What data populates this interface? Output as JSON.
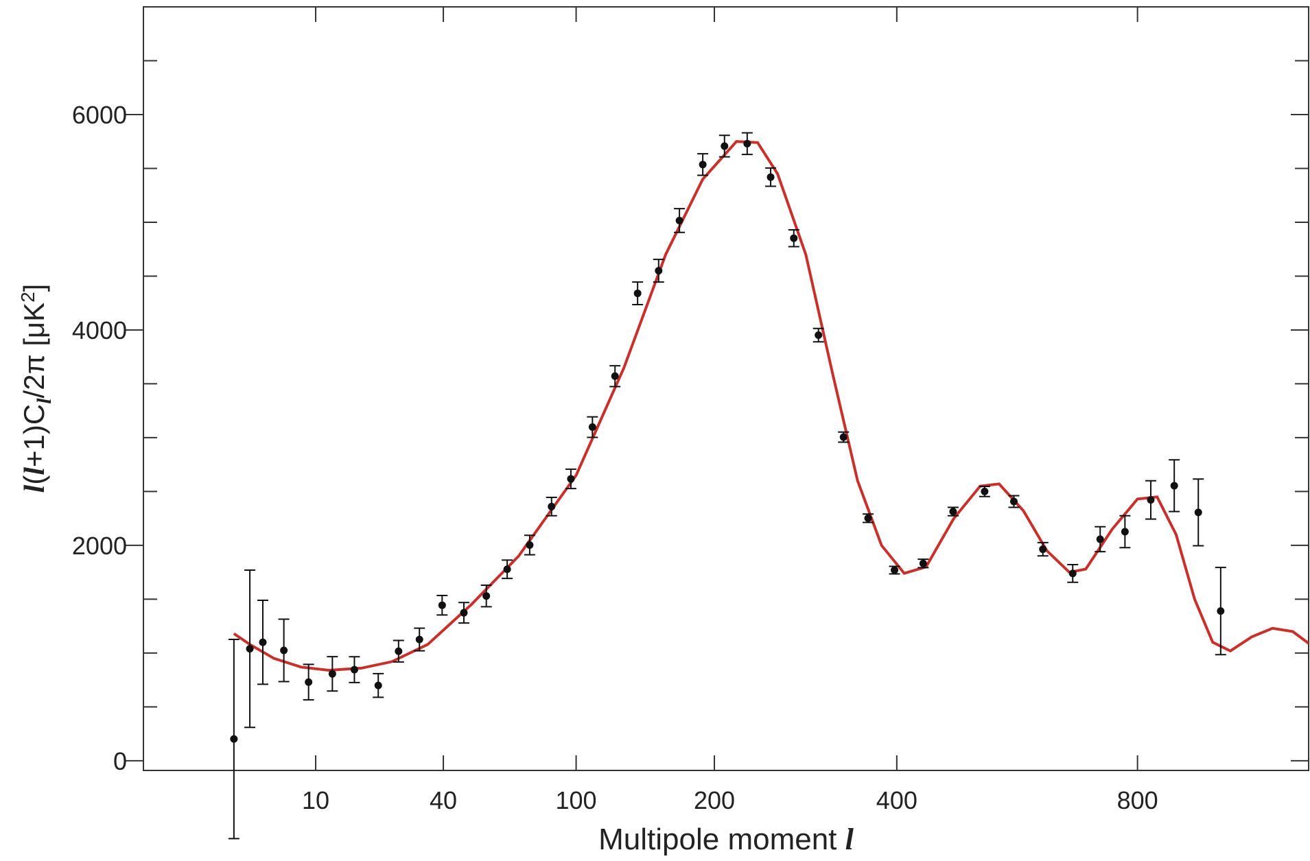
{
  "chart_data": {
    "type": "scatter",
    "xlabel": [
      "Multipole moment ",
      "l"
    ],
    "ylabel": [
      "l",
      "(",
      "l",
      "+1)C",
      "l",
      "/2π [μK",
      "2",
      "]"
    ],
    "xscale": "power",
    "xpower": 0.4,
    "xlim": [
      0,
      1190
    ],
    "ylim": [
      -90,
      7000
    ],
    "xticks": [
      10,
      40,
      100,
      200,
      400,
      800
    ],
    "yticks": [
      0,
      2000,
      4000,
      6000
    ],
    "yminor_ticks": [
      500,
      1000,
      1500,
      2500,
      3000,
      3500,
      4500,
      5000,
      5500,
      6500
    ],
    "points": {
      "color": "#111111",
      "x": [
        2,
        3,
        4,
        6,
        9,
        12.6,
        16.6,
        21.7,
        26.7,
        32.5,
        39.6,
        47.2,
        55.9,
        64.8,
        75.3,
        86.4,
        97,
        109.7,
        124,
        139.4,
        154.7,
        170.8,
        190,
        209,
        230,
        253,
        277,
        304,
        333,
        363,
        397,
        436,
        479,
        527,
        574,
        623,
        676,
        727,
        775,
        827,
        876,
        928,
        978
      ],
      "values": [
        202,
        1040,
        1100,
        1025,
        730,
        807,
        846,
        699,
        1017,
        1126,
        1444,
        1374,
        1530,
        1778,
        2003,
        2360,
        2617,
        3098,
        3571,
        4340,
        4550,
        5016,
        5536,
        5707,
        5730,
        5419,
        4852,
        3952,
        3005,
        2252,
        1770,
        1832,
        2314,
        2500,
        2407,
        1964,
        1739,
        2057,
        2127,
        2422,
        2554,
        2306,
        1390
      ],
      "errors": [
        925,
        730,
        390,
        290,
        165,
        160,
        120,
        110,
        100,
        105,
        90,
        95,
        100,
        85,
        90,
        85,
        90,
        95,
        97,
        105,
        105,
        110,
        100,
        100,
        100,
        85,
        78,
        62,
        47,
        39,
        35,
        39,
        39,
        47,
        54,
        62,
        82,
        116,
        148,
        178,
        240,
        310,
        405
      ]
    },
    "curve": {
      "color": "#c8312b",
      "x": [
        2,
        3,
        5,
        8,
        12,
        18,
        25,
        35,
        50,
        70,
        100,
        130,
        160,
        190,
        220,
        240,
        260,
        290,
        320,
        350,
        380,
        410,
        440,
        480,
        520,
        550,
        590,
        630,
        670,
        700,
        750,
        800,
        840,
        880,
        920,
        960,
        1000,
        1050,
        1100,
        1150,
        1190
      ],
      "values": [
        1180,
        1080,
        950,
        870,
        840,
        860,
        920,
        1080,
        1450,
        1900,
        2650,
        3650,
        4700,
        5400,
        5750,
        5740,
        5450,
        4700,
        3600,
        2600,
        2000,
        1740,
        1800,
        2250,
        2550,
        2570,
        2320,
        1950,
        1750,
        1780,
        2150,
        2430,
        2450,
        2100,
        1500,
        1100,
        1020,
        1150,
        1230,
        1200,
        1090
      ]
    }
  }
}
